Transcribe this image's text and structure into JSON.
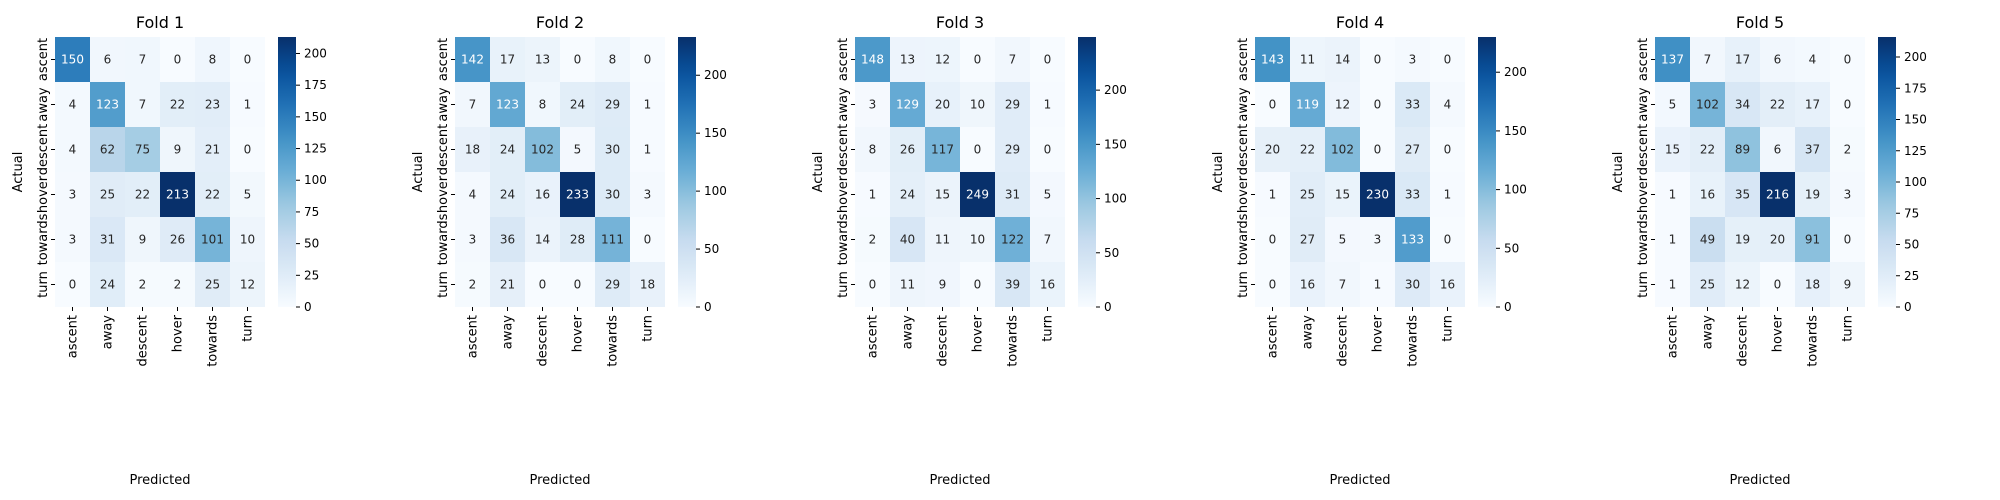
{
  "chart_data": [
    {
      "type": "heatmap",
      "title": "Fold 1",
      "xlabel": "Predicted",
      "ylabel": "Actual",
      "x_categories": [
        "ascent",
        "away",
        "descent",
        "hover",
        "towards",
        "turn"
      ],
      "y_categories": [
        "ascent",
        "away",
        "descent",
        "hover",
        "towards",
        "turn"
      ],
      "values": [
        [
          150,
          6,
          7,
          0,
          8,
          0
        ],
        [
          4,
          123,
          7,
          22,
          23,
          1
        ],
        [
          4,
          62,
          75,
          9,
          21,
          0
        ],
        [
          3,
          25,
          22,
          213,
          22,
          5
        ],
        [
          3,
          31,
          9,
          26,
          101,
          10
        ],
        [
          0,
          24,
          2,
          2,
          25,
          12
        ]
      ],
      "colorbar": {
        "min": 0,
        "max": 213,
        "ticks": [
          0,
          25,
          50,
          75,
          100,
          125,
          150,
          175,
          200
        ]
      },
      "colormap": "Blues"
    },
    {
      "type": "heatmap",
      "title": "Fold 2",
      "xlabel": "Predicted",
      "ylabel": "Actual",
      "x_categories": [
        "ascent",
        "away",
        "descent",
        "hover",
        "towards",
        "turn"
      ],
      "y_categories": [
        "ascent",
        "away",
        "descent",
        "hover",
        "towards",
        "turn"
      ],
      "values": [
        [
          142,
          17,
          13,
          0,
          8,
          0
        ],
        [
          7,
          123,
          8,
          24,
          29,
          1
        ],
        [
          18,
          24,
          102,
          5,
          30,
          1
        ],
        [
          4,
          24,
          16,
          233,
          30,
          3
        ],
        [
          3,
          36,
          14,
          28,
          111,
          0
        ],
        [
          2,
          21,
          0,
          0,
          29,
          18
        ]
      ],
      "colorbar": {
        "min": 0,
        "max": 233,
        "ticks": [
          0,
          50,
          100,
          150,
          200
        ]
      },
      "colormap": "Blues"
    },
    {
      "type": "heatmap",
      "title": "Fold 3",
      "xlabel": "Predicted",
      "ylabel": "Actual",
      "x_categories": [
        "ascent",
        "away",
        "descent",
        "hover",
        "towards",
        "turn"
      ],
      "y_categories": [
        "ascent",
        "away",
        "descent",
        "hover",
        "towards",
        "turn"
      ],
      "values": [
        [
          148,
          13,
          12,
          0,
          7,
          0
        ],
        [
          3,
          129,
          20,
          10,
          29,
          1
        ],
        [
          8,
          26,
          117,
          0,
          29,
          0
        ],
        [
          1,
          24,
          15,
          249,
          31,
          5
        ],
        [
          2,
          40,
          11,
          10,
          122,
          7
        ],
        [
          0,
          11,
          9,
          0,
          39,
          16
        ]
      ],
      "colorbar": {
        "min": 0,
        "max": 249,
        "ticks": [
          0,
          50,
          100,
          150,
          200
        ]
      },
      "colormap": "Blues"
    },
    {
      "type": "heatmap",
      "title": "Fold 4",
      "xlabel": "Predicted",
      "ylabel": "Actual",
      "x_categories": [
        "ascent",
        "away",
        "descent",
        "hover",
        "towards",
        "turn"
      ],
      "y_categories": [
        "ascent",
        "away",
        "descent",
        "hover",
        "towards",
        "turn"
      ],
      "values": [
        [
          143,
          11,
          14,
          0,
          3,
          0
        ],
        [
          0,
          119,
          12,
          0,
          33,
          4
        ],
        [
          20,
          22,
          102,
          0,
          27,
          0
        ],
        [
          1,
          25,
          15,
          230,
          33,
          1
        ],
        [
          0,
          27,
          5,
          3,
          133,
          0
        ],
        [
          0,
          16,
          7,
          1,
          30,
          16
        ]
      ],
      "colorbar": {
        "min": 0,
        "max": 230,
        "ticks": [
          0,
          50,
          100,
          150,
          200
        ]
      },
      "colormap": "Blues"
    },
    {
      "type": "heatmap",
      "title": "Fold 5",
      "xlabel": "Predicted",
      "ylabel": "Actual",
      "x_categories": [
        "ascent",
        "away",
        "descent",
        "hover",
        "towards",
        "turn"
      ],
      "y_categories": [
        "ascent",
        "away",
        "descent",
        "hover",
        "towards",
        "turn"
      ],
      "values": [
        [
          137,
          7,
          17,
          6,
          4,
          0
        ],
        [
          5,
          102,
          34,
          22,
          17,
          0
        ],
        [
          15,
          22,
          89,
          6,
          37,
          2
        ],
        [
          1,
          16,
          35,
          216,
          19,
          3
        ],
        [
          1,
          49,
          19,
          20,
          91,
          0
        ],
        [
          1,
          25,
          12,
          0,
          18,
          9
        ]
      ],
      "colorbar": {
        "min": 0,
        "max": 216,
        "ticks": [
          0,
          25,
          50,
          75,
          100,
          125,
          150,
          175,
          200
        ]
      },
      "colormap": "Blues"
    }
  ]
}
